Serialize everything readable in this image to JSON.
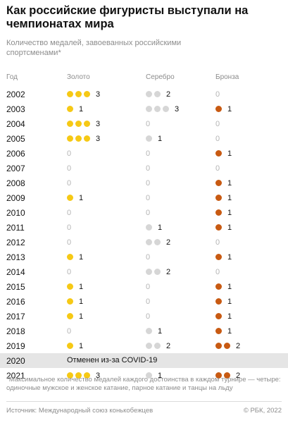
{
  "title": "Как российские фигуристы выступали на чемпионатах мира",
  "subtitle": "Количество медалей, завоеванных российскими спортсменами*",
  "colors": {
    "gold": "#f6c915",
    "silver": "#d6d6d6",
    "bronze": "#c85a12"
  },
  "chart_data": {
    "type": "table",
    "columns": [
      "Год",
      "Золото",
      "Серебро",
      "Бронза"
    ],
    "rows": [
      {
        "year": "2002",
        "gold": 3,
        "silver": 2,
        "bronze": 0
      },
      {
        "year": "2003",
        "gold": 1,
        "silver": 3,
        "bronze": 1
      },
      {
        "year": "2004",
        "gold": 3,
        "silver": 0,
        "bronze": 0
      },
      {
        "year": "2005",
        "gold": 3,
        "silver": 1,
        "bronze": 0
      },
      {
        "year": "2006",
        "gold": 0,
        "silver": 0,
        "bronze": 1
      },
      {
        "year": "2007",
        "gold": 0,
        "silver": 0,
        "bronze": 0
      },
      {
        "year": "2008",
        "gold": 0,
        "silver": 0,
        "bronze": 1
      },
      {
        "year": "2009",
        "gold": 1,
        "silver": 0,
        "bronze": 1
      },
      {
        "year": "2010",
        "gold": 0,
        "silver": 0,
        "bronze": 1
      },
      {
        "year": "2011",
        "gold": 0,
        "silver": 1,
        "bronze": 1
      },
      {
        "year": "2012",
        "gold": 0,
        "silver": 2,
        "bronze": 0
      },
      {
        "year": "2013",
        "gold": 1,
        "silver": 0,
        "bronze": 1
      },
      {
        "year": "2014",
        "gold": 0,
        "silver": 2,
        "bronze": 0
      },
      {
        "year": "2015",
        "gold": 1,
        "silver": 0,
        "bronze": 1
      },
      {
        "year": "2016",
        "gold": 1,
        "silver": 0,
        "bronze": 1
      },
      {
        "year": "2017",
        "gold": 1,
        "silver": 0,
        "bronze": 1
      },
      {
        "year": "2018",
        "gold": 0,
        "silver": 1,
        "bronze": 1
      },
      {
        "year": "2019",
        "gold": 1,
        "silver": 2,
        "bronze": 2
      },
      {
        "year": "2020",
        "note": "Отменен из-за COVID-19"
      },
      {
        "year": "2021",
        "gold": 3,
        "silver": 1,
        "bronze": 2
      }
    ]
  },
  "footnote": "*Максимальное количество медалей каждого достоинства в каждом турнире — четыре: одиночные мужское и женское катание, парное катание и танцы на льду",
  "source": "Источник: Международный союз конькобежцев",
  "credit": "© РБК, 2022"
}
